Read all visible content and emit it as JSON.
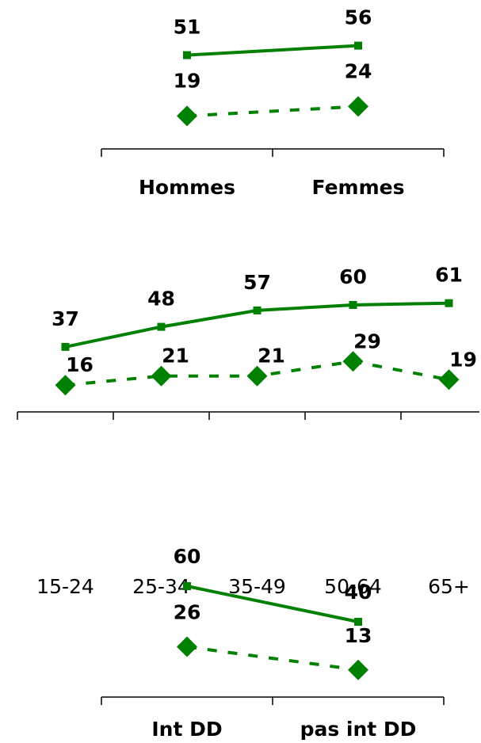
{
  "chart_data": [
    {
      "type": "line",
      "categories": [
        "Hommes",
        "Femmes"
      ],
      "ylim": [
        0,
        80
      ],
      "series": [
        {
          "color": "#008000",
          "line_style": "solid",
          "marker": "square",
          "values": [
            51,
            56
          ]
        },
        {
          "color": "#008000",
          "line_style": "dashed",
          "marker": "diamond",
          "values": [
            19,
            24
          ]
        }
      ]
    },
    {
      "type": "line",
      "categories": [
        "15-24",
        "25-34",
        "35-49",
        "50-64",
        "65+"
      ],
      "ylim": [
        0,
        80
      ],
      "series": [
        {
          "color": "#008000",
          "line_style": "solid",
          "marker": "square",
          "values": [
            37,
            48,
            57,
            60,
            61
          ]
        },
        {
          "color": "#008000",
          "line_style": "dashed",
          "marker": "diamond",
          "values": [
            16,
            21,
            21,
            29,
            19
          ]
        }
      ]
    },
    {
      "type": "line",
      "categories": [
        "Int DD",
        "pas int DD"
      ],
      "ylim": [
        0,
        80
      ],
      "series": [
        {
          "color": "#008000",
          "line_style": "solid",
          "marker": "square",
          "values": [
            60,
            40
          ]
        },
        {
          "color": "#008000",
          "line_style": "dashed",
          "marker": "diamond",
          "values": [
            26,
            13
          ]
        }
      ]
    }
  ]
}
